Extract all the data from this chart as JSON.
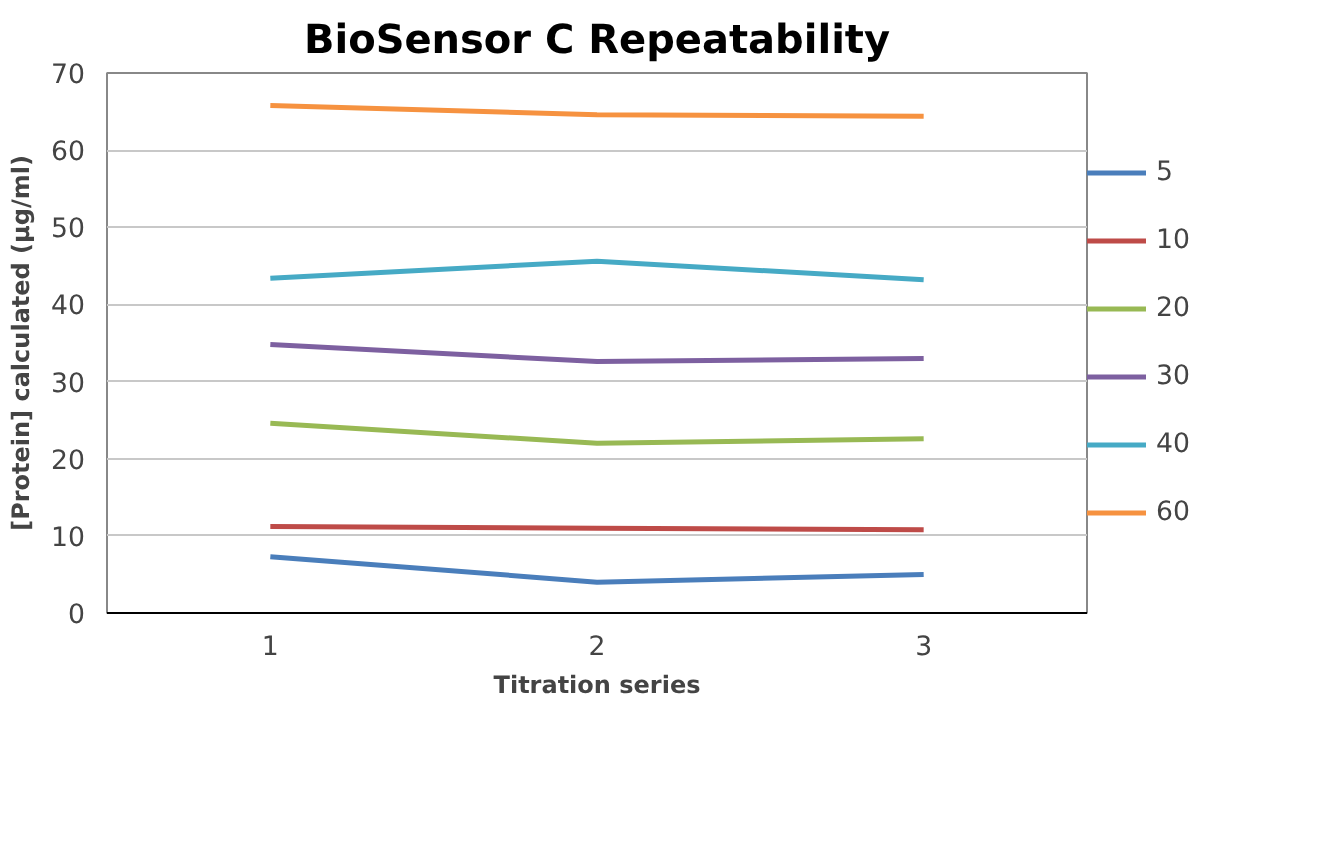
{
  "chart_data": {
    "type": "line",
    "title": "BioSensor C Repeatability",
    "xlabel": "Titration series",
    "ylabel": "[Protein] calculated (µg/ml)",
    "categories": [
      "1",
      "2",
      "3"
    ],
    "series": [
      {
        "name": "5",
        "color": "#4a7ebb",
        "values": [
          7.3,
          4.0,
          5.0
        ]
      },
      {
        "name": "10",
        "color": "#be4b48",
        "values": [
          11.2,
          11.0,
          10.8
        ]
      },
      {
        "name": "20",
        "color": "#98b954",
        "values": [
          24.6,
          22.0,
          22.6
        ]
      },
      {
        "name": "30",
        "color": "#7d60a0",
        "values": [
          34.8,
          32.6,
          33.0
        ]
      },
      {
        "name": "40",
        "color": "#46aac5",
        "values": [
          43.4,
          45.6,
          43.2
        ]
      },
      {
        "name": "60",
        "color": "#f69240",
        "values": [
          65.8,
          64.6,
          64.4
        ]
      }
    ],
    "ylim": [
      0,
      70
    ],
    "yticks": [
      0,
      10,
      20,
      30,
      40,
      50,
      60,
      70
    ],
    "grid": "y",
    "legend": "right",
    "marker": "none",
    "line_style": "solid"
  }
}
